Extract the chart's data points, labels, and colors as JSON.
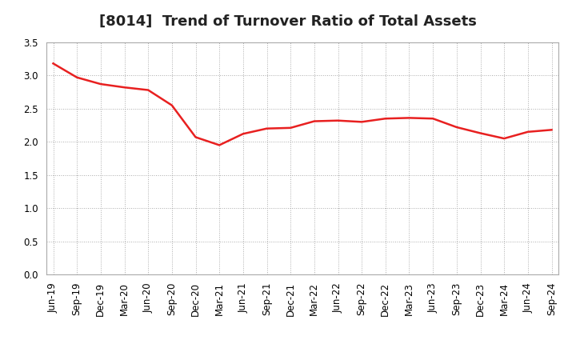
{
  "title": "[8014]  Trend of Turnover Ratio of Total Assets",
  "x_labels": [
    "Jun-19",
    "Sep-19",
    "Dec-19",
    "Mar-20",
    "Jun-20",
    "Sep-20",
    "Dec-20",
    "Mar-21",
    "Jun-21",
    "Sep-21",
    "Dec-21",
    "Mar-22",
    "Jun-22",
    "Sep-22",
    "Dec-22",
    "Mar-23",
    "Jun-23",
    "Sep-23",
    "Dec-23",
    "Mar-24",
    "Jun-24",
    "Sep-24"
  ],
  "y_values": [
    3.18,
    2.97,
    2.87,
    2.82,
    2.78,
    2.55,
    2.07,
    1.95,
    2.12,
    2.2,
    2.21,
    2.31,
    2.32,
    2.3,
    2.35,
    2.36,
    2.35,
    2.22,
    2.13,
    2.05,
    2.15,
    2.18
  ],
  "line_color": "#e82020",
  "line_width": 1.8,
  "ylim": [
    0.0,
    3.5
  ],
  "yticks": [
    0.0,
    0.5,
    1.0,
    1.5,
    2.0,
    2.5,
    3.0,
    3.5
  ],
  "background_color": "#ffffff",
  "plot_bg_color": "#ffffff",
  "grid_color": "#aaaaaa",
  "title_fontsize": 13,
  "tick_fontsize": 8.5
}
